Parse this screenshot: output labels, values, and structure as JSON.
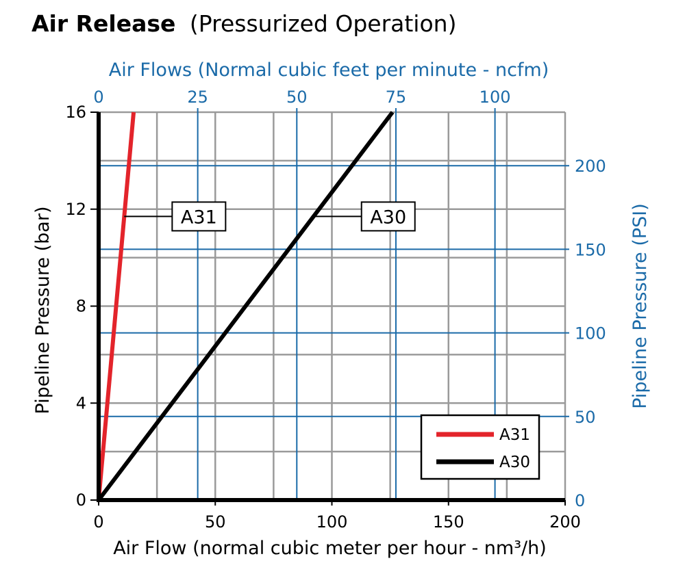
{
  "title": {
    "bold": "Air Release",
    "rest": "(Pressurized Operation)"
  },
  "colors": {
    "grid_gray": "#9a9a9a",
    "blue": "#1a6aa8",
    "red": "#e3242b",
    "black": "#000000"
  },
  "chart_data": {
    "type": "line",
    "x": {
      "label": "Air Flow (normal cubic meter per hour - nm³/h)",
      "range": [
        0,
        200
      ],
      "ticks": [
        "0",
        "50",
        "100",
        "150",
        "200"
      ]
    },
    "y": {
      "label": "Pipeline Pressure (bar)",
      "range": [
        0,
        16
      ],
      "ticks": [
        "0",
        "4",
        "8",
        "12",
        "16"
      ]
    },
    "x2": {
      "label": "Air Flows (Normal cubic feet per minute - ncfm)",
      "range": [
        0,
        117.7
      ],
      "ticks": [
        {
          "v": 0,
          "t": "0"
        },
        {
          "v": 25,
          "t": "25"
        },
        {
          "v": 50,
          "t": "50"
        },
        {
          "v": 75,
          "t": "75"
        },
        {
          "v": 100,
          "t": "100"
        }
      ]
    },
    "y2": {
      "label": "Pipeline Pressure (PSI)",
      "range": [
        0,
        232
      ],
      "ticks": [
        {
          "v": 0,
          "t": "0"
        },
        {
          "v": 50,
          "t": "50"
        },
        {
          "v": 100,
          "t": "100"
        },
        {
          "v": 150,
          "t": "150"
        },
        {
          "v": 200,
          "t": "200"
        }
      ]
    },
    "series": [
      {
        "name": "A31",
        "color": "#e3242b",
        "points": [
          [
            0,
            0
          ],
          [
            15,
            16
          ]
        ]
      },
      {
        "name": "A30",
        "color": "#000000",
        "points": [
          [
            0,
            0
          ],
          [
            126,
            16
          ]
        ]
      }
    ],
    "callouts": [
      {
        "text": "A31",
        "series": "A31",
        "y": 11.7
      },
      {
        "text": "A30",
        "series": "A30",
        "y": 11.7
      }
    ],
    "legend": {
      "position": "bottom-right",
      "entries": [
        "A31",
        "A30"
      ]
    },
    "grid": true
  }
}
